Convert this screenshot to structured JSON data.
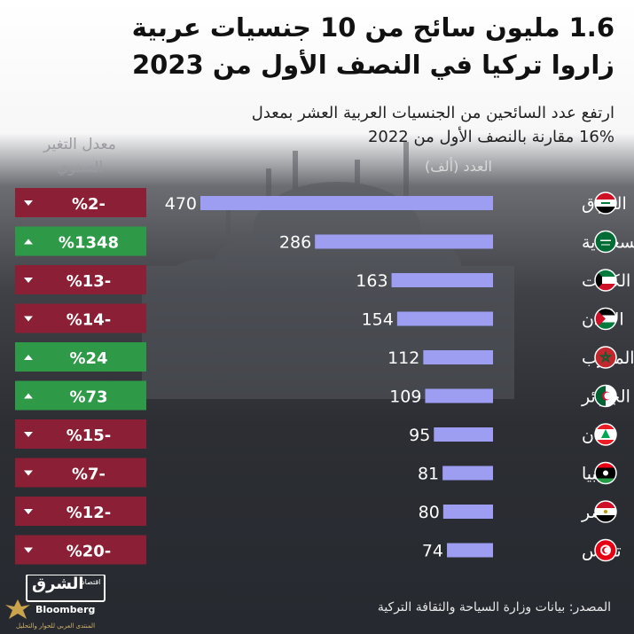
{
  "header": {
    "title_line1": "1.6 مليون سائح من 10 جنسيات عربية",
    "title_line2": "زاروا تركيا في النصف الأول من 2023",
    "subtitle_line1": "ارتفع عدد السائحين من الجنسيات العربية العشر بمعدل",
    "subtitle_line2": "16% مقارنة بالنصف الأول من 2022"
  },
  "rate_header": {
    "line1": "معدل التغير",
    "line2": "السنوي"
  },
  "unit_label": "العدد (ألف)",
  "colors": {
    "bar": "#9d9df2",
    "rate_negative": "#8b1f35",
    "rate_positive": "#2e9a48"
  },
  "chart_data": {
    "type": "bar",
    "orientation": "horizontal",
    "categories": [
      "العراق",
      "السعودية",
      "الكويت",
      "الأردن",
      "المغرب",
      "الجزائر",
      "لبنان",
      "ليبيا",
      "مصر",
      "تونس"
    ],
    "values": [
      470,
      286,
      163,
      154,
      112,
      109,
      95,
      81,
      80,
      74
    ],
    "ylabel": "العدد (ألف)",
    "annual_change": [
      "-2%",
      "1348%",
      "-13%",
      "-14%",
      "24%",
      "73%",
      "-15%",
      "-7%",
      "-12%",
      "-20%"
    ],
    "annual_change_labels": [
      "%2-",
      "%1348",
      "%13-",
      "%14-",
      "%24",
      "%73",
      "%15-",
      "%7-",
      "%12-",
      "%20-"
    ],
    "annual_change_direction": [
      "down",
      "up",
      "down",
      "down",
      "up",
      "up",
      "down",
      "down",
      "down",
      "down"
    ],
    "flags": [
      "iraq-flag",
      "saudi-arabia-flag",
      "kuwait-flag",
      "jordan-flag",
      "morocco-flag",
      "algeria-flag",
      "lebanon-flag",
      "libya-flag",
      "egypt-flag",
      "tunisia-flag"
    ],
    "legend": "none",
    "grid": false
  },
  "source": "المصدر: بيانات وزارة السياحة والثقافة التركية",
  "logo": {
    "arabic": "الشرق",
    "arabic_sub": "اقتصاد",
    "english": "Bloomberg"
  },
  "watermark": "المنتدى العربي للحوار والتحليل"
}
